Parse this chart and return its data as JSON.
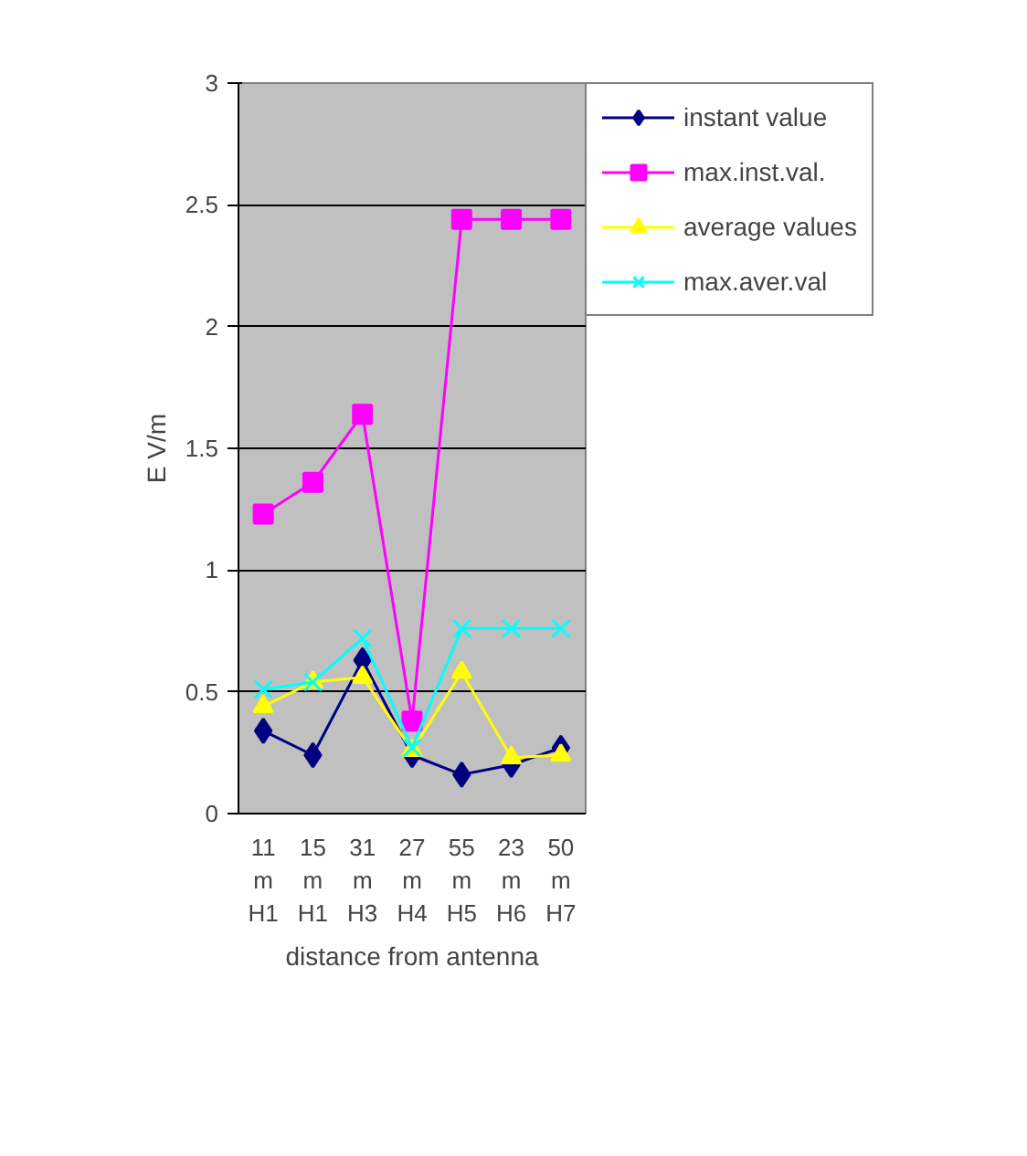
{
  "chart_data": {
    "type": "line",
    "xlabel": "distance from antenna",
    "ylabel": "E V/m",
    "categories": [
      "11 m H1",
      "15 m H1",
      "31 m H3",
      "27 m H4",
      "55 m H5",
      "23 m H6",
      "50 m H7"
    ],
    "series": [
      {
        "name": "instant value",
        "color": "#000080",
        "marker": "diamond",
        "values": [
          0.34,
          0.24,
          0.63,
          0.24,
          0.16,
          0.2,
          0.27
        ]
      },
      {
        "name": "max.inst.val.",
        "color": "#ff00ff",
        "marker": "square",
        "values": [
          1.23,
          1.36,
          1.64,
          0.38,
          2.44,
          2.44,
          2.44
        ]
      },
      {
        "name": "average values",
        "color": "#ffff00",
        "marker": "triangle",
        "values": [
          0.44,
          0.54,
          0.56,
          0.26,
          0.58,
          0.23,
          0.24
        ]
      },
      {
        "name": "max.aver.val",
        "color": "#00ffff",
        "marker": "cross",
        "values": [
          0.51,
          0.54,
          0.72,
          0.27,
          0.76,
          0.76,
          0.76
        ]
      }
    ],
    "ylim": [
      0,
      3
    ],
    "yticks": [
      0,
      0.5,
      1,
      1.5,
      2,
      2.5,
      3
    ],
    "grid": "y",
    "legend": "right",
    "line_style": "solid"
  }
}
